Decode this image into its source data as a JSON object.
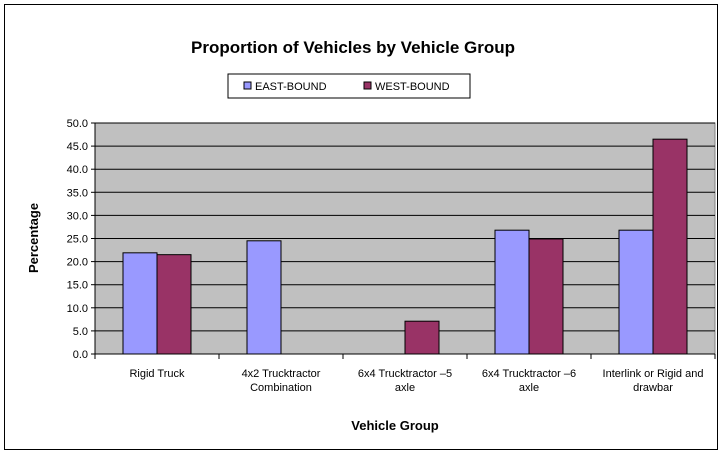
{
  "chart_data": {
    "type": "bar",
    "title": "Proportion of Vehicles by Vehicle Group",
    "xlabel": "Vehicle Group",
    "ylabel": "Percentage",
    "ylim": [
      0,
      50
    ],
    "ytick_step": 5,
    "ytick_labels": [
      "0.0",
      "5.0",
      "10.0",
      "15.0",
      "20.0",
      "25.0",
      "30.0",
      "35.0",
      "40.0",
      "45.0",
      "50.0"
    ],
    "grid": true,
    "legend_position": "top",
    "categories": [
      [
        "Rigid Truck"
      ],
      [
        "4x2 Trucktractor",
        "Combination"
      ],
      [
        "6x4 Trucktractor –5",
        "axle"
      ],
      [
        "6x4 Trucktractor –6",
        "axle"
      ],
      [
        "Interlink or Rigid and",
        "drawbar"
      ]
    ],
    "series": [
      {
        "name": "EAST-BOUND",
        "color": "#9999ff",
        "values": [
          21.9,
          24.5,
          0,
          26.8,
          26.8
        ]
      },
      {
        "name": "WEST-BOUND",
        "color": "#993366",
        "values": [
          21.5,
          0,
          7.1,
          24.9,
          46.5
        ]
      }
    ],
    "plot_background": "#c0c0c0"
  }
}
